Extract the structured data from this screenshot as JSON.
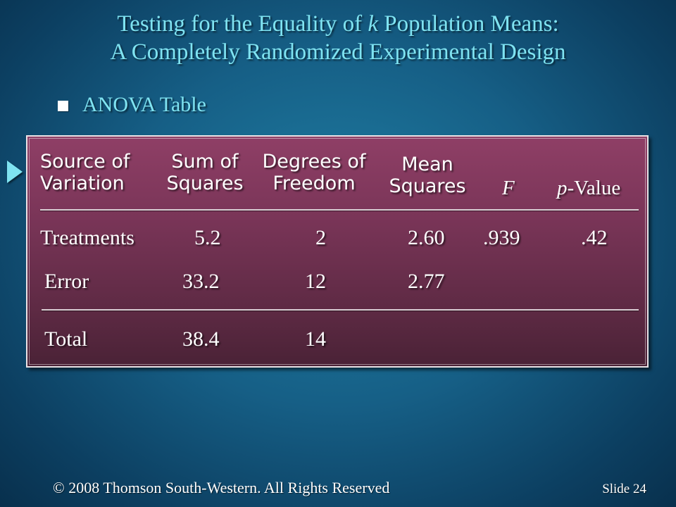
{
  "title": {
    "line1_prefix": "Testing for the Equality of ",
    "line1_var": "k",
    "line1_suffix": " Population Means:",
    "line2": "A Completely Randomized Experimental Design"
  },
  "bullet": {
    "label": "ANOVA Table"
  },
  "anova_table": {
    "headers": {
      "source": [
        "Source of",
        "Variation"
      ],
      "sum_of_squares": [
        "Sum of",
        "Squares"
      ],
      "degrees_of_freedom": [
        "Degrees of",
        "Freedom"
      ],
      "mean_squares": [
        "Mean",
        "Squares"
      ],
      "f": "F",
      "p_value_italic": "p",
      "p_value_suffix": "-Value"
    },
    "rows": [
      {
        "source": "Treatments",
        "ss": "5.2",
        "df": "2",
        "ms": "2.60",
        "f": ".939",
        "p": ".42"
      },
      {
        "source": "Error",
        "ss": "33.2",
        "df": "12",
        "ms": "2.77"
      },
      {
        "source": "Total",
        "ss": "38.4",
        "df": "14"
      }
    ]
  },
  "footer": {
    "copyright": "© 2008  Thomson South-Western.  All Rights Reserved",
    "slide_label": "Slide 24"
  },
  "colors": {
    "title": "#7fe3f1",
    "panel": "#7a3558",
    "background": "#165f86"
  }
}
